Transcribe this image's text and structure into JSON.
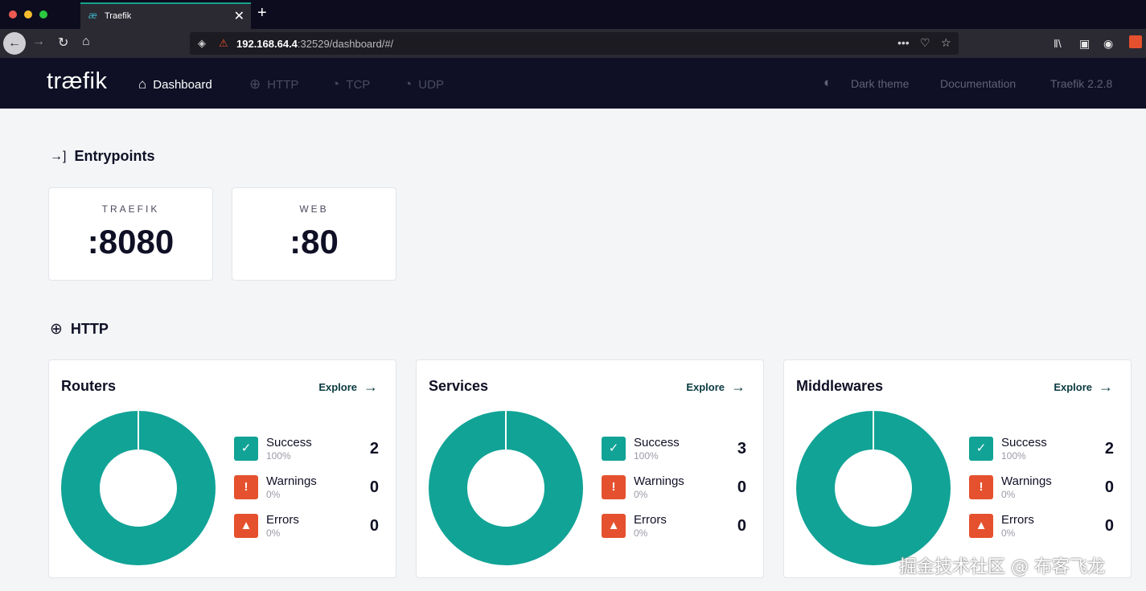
{
  "browser": {
    "traffic_colors": [
      "#ee5a52",
      "#f5bd2e",
      "#2bc840"
    ],
    "tab": {
      "favicon": "æ",
      "title": "Traefik",
      "close": "✕"
    },
    "new_tab": "+",
    "url": {
      "host": "192.168.64.4",
      "rest": ":32529/dashboard/#/"
    },
    "icons": [
      "back-icon",
      "forward-icon",
      "reload-icon",
      "home-icon",
      "shield-icon",
      "lock-warning-icon",
      "more-icon",
      "pocket-icon",
      "star-icon",
      "library-icon",
      "sidebar-icon",
      "account-icon",
      "extension-icon"
    ]
  },
  "header": {
    "logo": "træfik",
    "nav": [
      {
        "label": "Dashboard",
        "icon": "⌂",
        "active": true
      },
      {
        "label": "HTTP",
        "icon": "⊕",
        "active": false
      },
      {
        "label": "TCP",
        "icon": "◔",
        "active": false
      },
      {
        "label": "UDP",
        "icon": "◔",
        "active": false
      }
    ],
    "dark_theme": "Dark theme",
    "documentation": "Documentation",
    "version": "Traefik 2.2.8"
  },
  "entrypoints": {
    "title": "Entrypoints",
    "icon": "→]",
    "items": [
      {
        "name": "TRAEFIK",
        "port": ":8080"
      },
      {
        "name": "WEB",
        "port": ":80"
      }
    ]
  },
  "http": {
    "title": "HTTP",
    "icon": "⊕",
    "explore_label": "Explore",
    "cards": [
      {
        "title": "Routers",
        "success": {
          "label": "Success",
          "pct": "100%",
          "count": "2"
        },
        "warnings": {
          "label": "Warnings",
          "pct": "0%",
          "count": "0"
        },
        "errors": {
          "label": "Errors",
          "pct": "0%",
          "count": "0"
        }
      },
      {
        "title": "Services",
        "success": {
          "label": "Success",
          "pct": "100%",
          "count": "3"
        },
        "warnings": {
          "label": "Warnings",
          "pct": "0%",
          "count": "0"
        },
        "errors": {
          "label": "Errors",
          "pct": "0%",
          "count": "0"
        }
      },
      {
        "title": "Middlewares",
        "success": {
          "label": "Success",
          "pct": "100%",
          "count": "2"
        },
        "warnings": {
          "label": "Warnings",
          "pct": "0%",
          "count": "0"
        },
        "errors": {
          "label": "Errors",
          "pct": "0%",
          "count": "0"
        }
      }
    ]
  },
  "colors": {
    "success": "#11a396",
    "warning": "#e5512e",
    "header_bg": "#0f1025"
  },
  "watermark": "掘金技术社区 @ 布客飞龙"
}
